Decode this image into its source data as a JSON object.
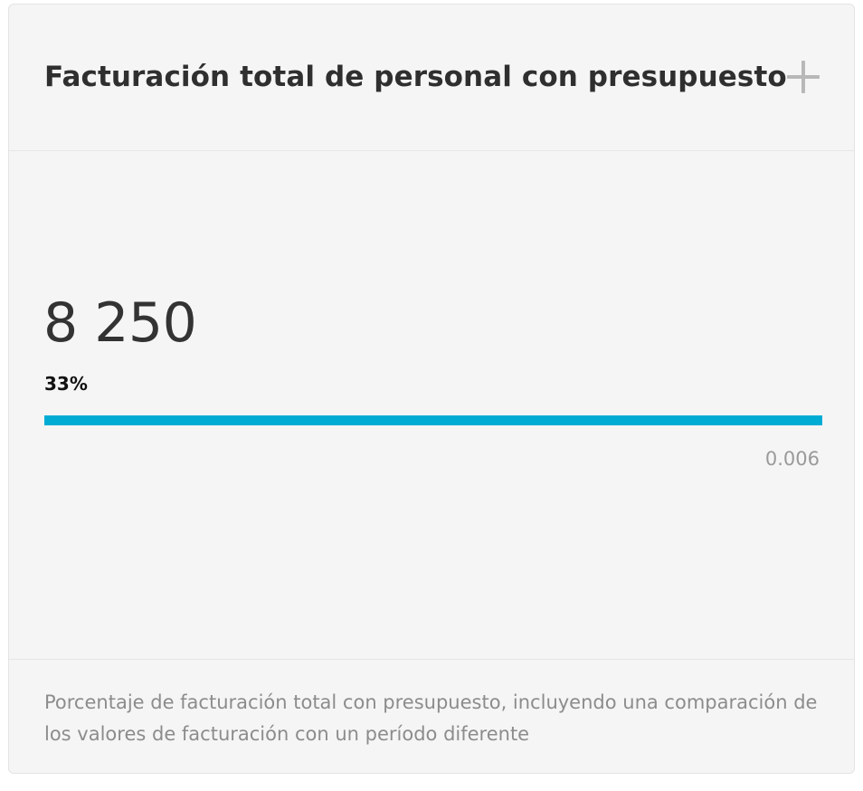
{
  "card": {
    "title": "Facturación total de personal con presupuesto",
    "add_icon": "plus-icon",
    "value": "8 250",
    "percent_label": "33%",
    "progress": {
      "fraction": 1.0,
      "color": "#00acd4"
    },
    "target_value": "0.006",
    "description": "Porcentaje de facturación total con presupuesto, incluyendo una comparación de los valores de facturación con un período diferente"
  }
}
